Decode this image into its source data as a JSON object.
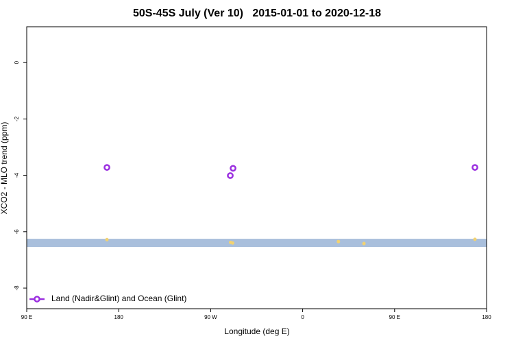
{
  "chart_data": {
    "type": "scatter",
    "title": "50S-45S July (Ver 10)   2015-01-01 to 2020-12-18",
    "x_label": "Longitude (deg E)",
    "y_label": "XCO2 - MLO trend (ppm)",
    "xlim": [
      90,
      540
    ],
    "ylim": [
      -8.73,
      1.27
    ],
    "xticks": [
      {
        "value": 90,
        "label": "90 E"
      },
      180,
      {
        "value": 270,
        "label": "90 W"
      },
      {
        "value": 360,
        "label": "0"
      },
      {
        "value": 450,
        "label": "90 E"
      },
      {
        "value": 540,
        "label": "180"
      }
    ],
    "yticks": [
      0,
      -2,
      -4,
      -6,
      -8
    ],
    "band": {
      "values": [
        -6.25,
        -6.54
      ],
      "color": "#a9bfdc"
    },
    "series": [
      {
        "color": "#f2d272",
        "x": [
          168.5,
          289.5,
          291.5,
          395,
          420,
          528.6
        ],
        "values": [
          -6.28,
          -6.38,
          -6.4,
          -6.35,
          -6.42,
          -6.27
        ]
      },
      {
        "name": "Land (Nadir&Glint) and Ocean (Glint)",
        "color": "#9b30e0",
        "x": [
          168.5,
          289.2,
          291.9,
          528.6
        ],
        "values": [
          -3.72,
          -4.01,
          -3.75,
          -3.72
        ]
      }
    ],
    "legend": "bottomleft"
  }
}
